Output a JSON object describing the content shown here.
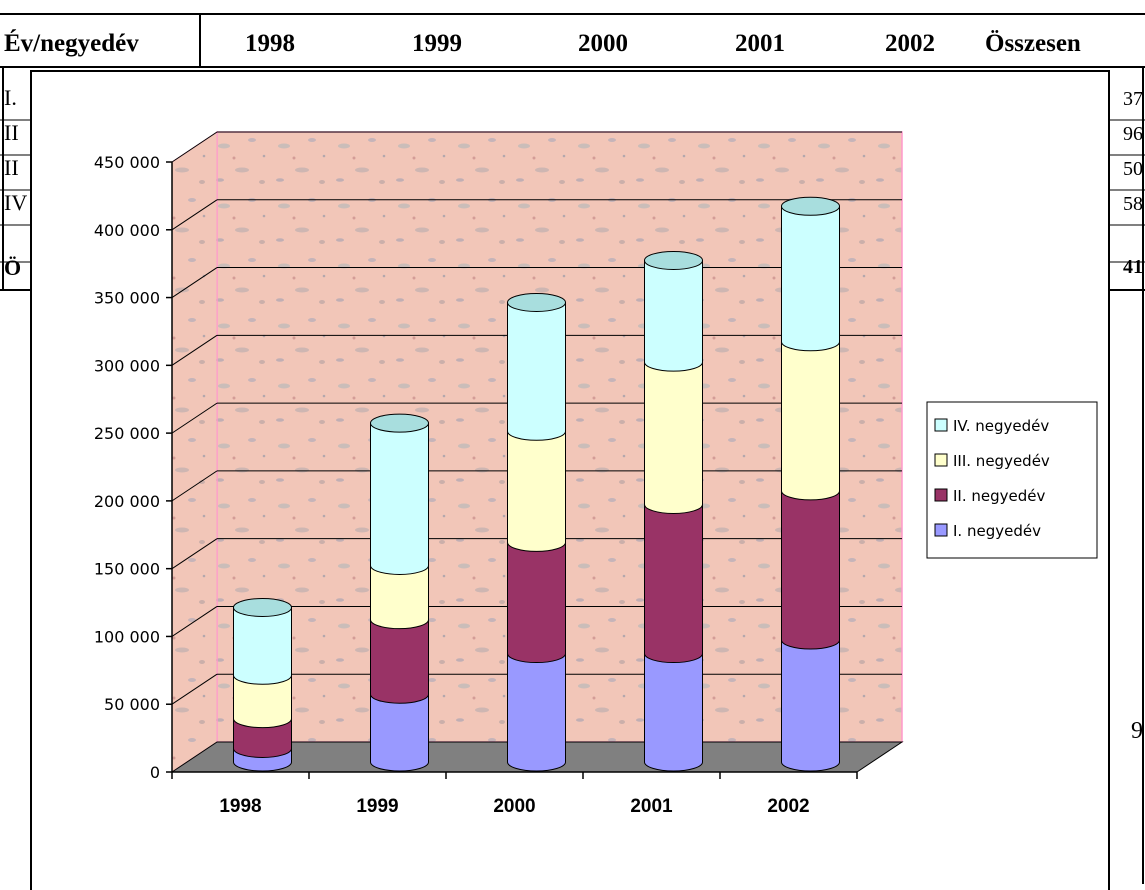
{
  "table": {
    "header_label": "Év/negyedév",
    "header_years": [
      "1998",
      "1999",
      "2000",
      "2001",
      "2002"
    ],
    "header_total": "Összesen",
    "row_labels": [
      "I.",
      "II",
      "II",
      "IV",
      "Ö"
    ],
    "row_value_fragments": [
      "37",
      "96",
      "50",
      "58",
      "41"
    ],
    "trailing_fragment": "9"
  },
  "chart_data": {
    "type": "bar",
    "stacked": true,
    "three_d": true,
    "title": "",
    "xlabel": "",
    "ylabel": "",
    "categories": [
      "1998",
      "1999",
      "2000",
      "2001",
      "2002"
    ],
    "ylim": [
      0,
      450000
    ],
    "yticks": [
      "0",
      "50 000",
      "100 000",
      "150 000",
      "200 000",
      "250 000",
      "300 000",
      "350 000",
      "400 000",
      "450 000"
    ],
    "grid": true,
    "legend_position": "right",
    "series": [
      {
        "name": "I.  negyedév",
        "values": [
          10000,
          50000,
          80000,
          80000,
          90000
        ],
        "color": "#9999ff"
      },
      {
        "name": "II.  negyedév",
        "values": [
          22000,
          55000,
          82000,
          110000,
          110000
        ],
        "color": "#993366"
      },
      {
        "name": "III.  negyedév",
        "values": [
          32000,
          40000,
          82000,
          105000,
          110000
        ],
        "color": "#ffffcc"
      },
      {
        "name": "IV.  negyedév",
        "values": [
          50000,
          105000,
          95000,
          75000,
          100000
        ],
        "color": "#ccffff"
      }
    ],
    "wall_color": "#f2c6b8",
    "floor_color": "#808080"
  }
}
